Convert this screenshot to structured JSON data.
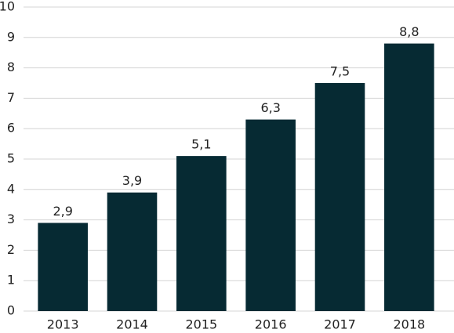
{
  "chart_data": {
    "type": "bar",
    "categories": [
      "2013",
      "2014",
      "2015",
      "2016",
      "2017",
      "2018"
    ],
    "values": [
      2.9,
      3.9,
      5.1,
      6.3,
      7.5,
      8.8
    ],
    "value_labels": [
      "2,9",
      "3,9",
      "5,1",
      "6,3",
      "7,5",
      "8,8"
    ],
    "color": "#062a33",
    "ylim": [
      0,
      10
    ],
    "yticks": [
      0,
      1,
      2,
      3,
      4,
      5,
      6,
      7,
      8,
      9,
      10
    ],
    "grid": true
  }
}
